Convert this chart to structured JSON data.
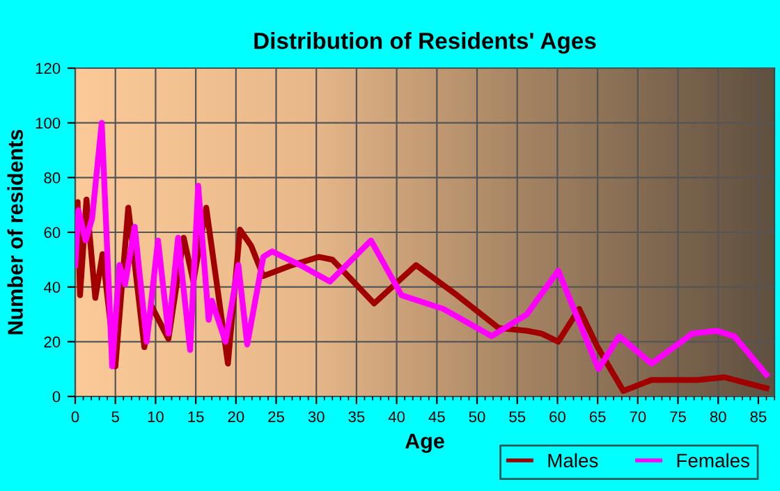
{
  "chart_data": {
    "type": "line",
    "title": "Distribution of Residents' Ages",
    "xlabel": "Age",
    "ylabel": "Number of residents",
    "xlim": [
      0,
      87
    ],
    "xticks": [
      0,
      5,
      10,
      15,
      20,
      25,
      30,
      35,
      40,
      45,
      50,
      55,
      60,
      65,
      70,
      75,
      80,
      85
    ],
    "ylim": [
      0,
      120
    ],
    "yticks": [
      0,
      20,
      40,
      60,
      80,
      100,
      120
    ],
    "grid": true,
    "legend": "bottom right",
    "line_style": "solid",
    "marker": "none",
    "series": [
      {
        "name": "Males",
        "color": "#a00000",
        "x": [
          0,
          0.3,
          0.6,
          1.4,
          2.5,
          3.4,
          5,
          6.6,
          8.6,
          9.5,
          11.6,
          13.5,
          14.7,
          16.3,
          19,
          20.5,
          21.9,
          23.4,
          27,
          30.3,
          32,
          37.2,
          42.4,
          47.5,
          52.7,
          56.2,
          58,
          60.1,
          62.7,
          65,
          68.2,
          71.7,
          77.4,
          80.8,
          86
        ],
        "values": [
          50,
          71,
          37,
          72,
          36,
          52,
          11,
          69,
          18,
          33,
          21,
          58,
          42,
          69,
          12,
          61,
          55,
          44,
          48,
          51,
          50,
          34,
          48,
          37,
          25,
          24,
          23,
          20,
          32,
          18,
          2,
          6,
          6,
          7,
          3
        ]
      },
      {
        "name": "Females",
        "color": "#ff00ff",
        "x": [
          0,
          0.4,
          1.3,
          2.1,
          3.3,
          4.6,
          5.5,
          6.2,
          7.4,
          8.9,
          10.3,
          11.6,
          12.8,
          14.3,
          15.3,
          16.6,
          17,
          18.7,
          20.3,
          21.4,
          23.4,
          24.5,
          28,
          31.7,
          36.8,
          40.6,
          45.8,
          51.8,
          56.2,
          60.1,
          65.1,
          67.7,
          71.7,
          76.8,
          79.8,
          82,
          86
        ],
        "values": [
          48,
          68,
          57,
          65,
          100,
          11,
          48,
          41,
          62,
          20,
          57,
          23,
          58,
          17,
          77,
          28,
          35,
          20,
          48,
          19,
          51,
          53,
          48,
          42,
          57,
          37,
          32,
          22,
          30,
          46,
          10,
          22,
          12,
          23,
          24,
          22,
          8
        ]
      }
    ]
  }
}
